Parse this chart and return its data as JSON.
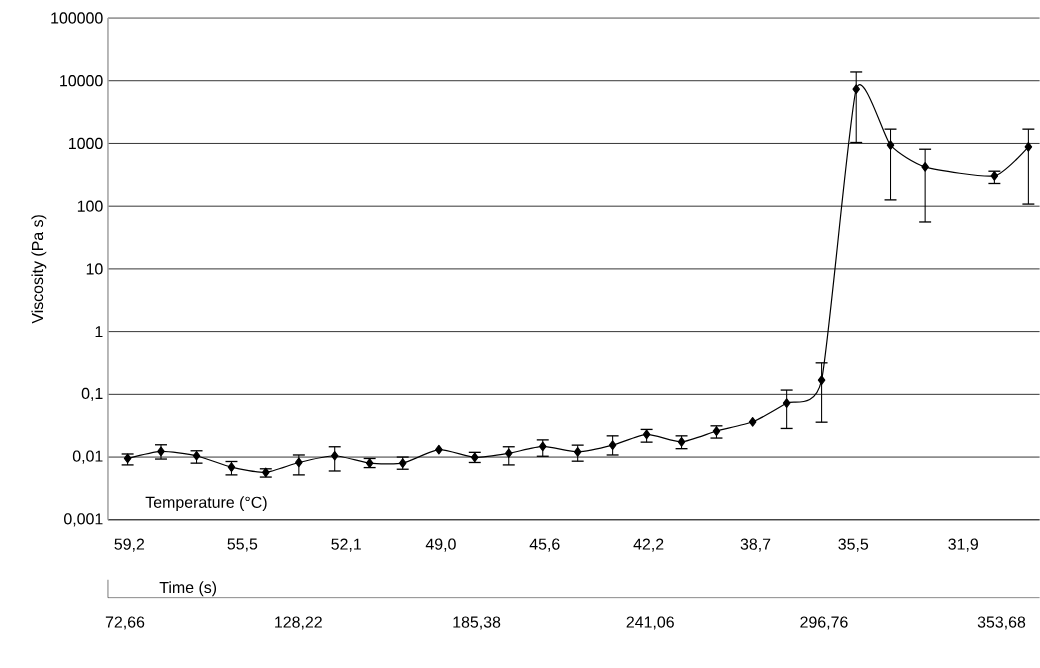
{
  "chart_data": {
    "type": "line",
    "ylabel": "Viscosity (Pa s)",
    "xlabel": "Time (s)",
    "x2label": "Temperature (°C)",
    "log": "y",
    "grid": "y",
    "marker": "diamond",
    "line_style": "solid",
    "color": "#000000",
    "x": [
      73.5,
      84.2,
      95.6,
      106.8,
      117.8,
      128.4,
      139.9,
      151.1,
      161.7,
      173.3,
      184.8,
      195.7,
      206.6,
      217.8,
      229.0,
      239.9,
      251.1,
      262.3,
      273.9,
      284.8,
      296.0,
      307.1,
      318.1,
      329.2,
      351.4,
      362.3
    ],
    "values": [
      0.0095,
      0.0123,
      0.0105,
      0.0069,
      0.0057,
      0.0082,
      0.0105,
      0.008,
      0.008,
      0.0131,
      0.0099,
      0.0115,
      0.0148,
      0.0121,
      0.0155,
      0.023,
      0.0175,
      0.026,
      0.0365,
      0.0725,
      0.169,
      7330,
      938,
      423,
      304,
      881
    ],
    "errors": [
      [
        0.0075,
        0.0112
      ],
      [
        0.0093,
        0.0157
      ],
      [
        0.008,
        0.0126
      ],
      [
        0.0052,
        0.0085
      ],
      [
        0.0048,
        0.0065
      ],
      [
        0.0052,
        0.0108
      ],
      [
        0.006,
        0.0146
      ],
      [
        0.0068,
        0.0095
      ],
      [
        0.0064,
        0.01
      ],
      null,
      [
        0.0082,
        0.0119
      ],
      [
        0.0075,
        0.0146
      ],
      [
        0.0103,
        0.0188
      ],
      [
        0.0086,
        0.0155
      ],
      [
        0.0108,
        0.0218
      ],
      [
        0.0173,
        0.0276
      ],
      [
        0.0136,
        0.0218
      ],
      [
        0.0201,
        0.0315
      ],
      null,
      [
        0.0286,
        0.117
      ],
      [
        0.036,
        0.318
      ],
      [
        1035,
        13800
      ],
      [
        126,
        1690
      ],
      [
        56,
        809
      ],
      [
        230,
        361
      ],
      [
        108,
        1690
      ]
    ],
    "xlim": [
      67.2,
      365.9
    ],
    "xticks": [
      {
        "value": 72.66,
        "label": "72,66"
      },
      {
        "value": 128.22,
        "label": "128,22"
      },
      {
        "value": 185.38,
        "label": "185,38"
      },
      {
        "value": 241.06,
        "label": "241,06"
      },
      {
        "value": 296.76,
        "label": "296,76"
      },
      {
        "value": 353.68,
        "label": "353,68"
      }
    ],
    "x2lim": [
      59.9,
      29.4
    ],
    "x2ticks": [
      {
        "value": 59.2,
        "label": "59,2"
      },
      {
        "value": 55.5,
        "label": "55,5"
      },
      {
        "value": 52.1,
        "label": "52,1"
      },
      {
        "value": 49.0,
        "label": "49,0"
      },
      {
        "value": 45.6,
        "label": "45,6"
      },
      {
        "value": 42.2,
        "label": "42,2"
      },
      {
        "value": 38.7,
        "label": "38,7"
      },
      {
        "value": 35.5,
        "label": "35,5"
      },
      {
        "value": 31.9,
        "label": "31,9"
      }
    ],
    "ylim": [
      0.001,
      100000
    ],
    "yticks": [
      {
        "value": 0.001,
        "label": "0,001"
      },
      {
        "value": 0.01,
        "label": "0,01"
      },
      {
        "value": 0.1,
        "label": "0,1"
      },
      1,
      10,
      100,
      1000,
      10000,
      100000
    ]
  }
}
